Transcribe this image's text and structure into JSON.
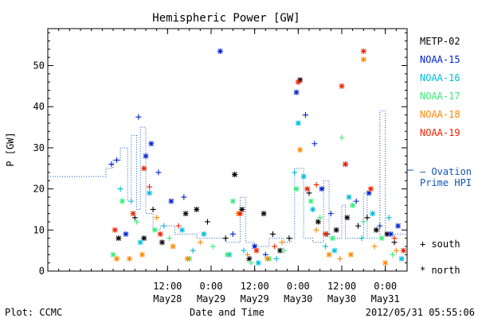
{
  "chart_data": {
    "type": "scatter",
    "title": "Hemispheric Power [GW]",
    "ylabel": "P [GW]",
    "xlabel": "Date and Time",
    "xlim": [
      "2012-05-27T03:00",
      "2012-05-31T06:00"
    ],
    "ylim": [
      0,
      59
    ],
    "yticks": [
      0,
      10,
      20,
      30,
      40,
      50
    ],
    "xticks": [
      {
        "t": "2012-05-28T12:00",
        "time": "12:00",
        "date": "May28"
      },
      {
        "t": "2012-05-29T00:00",
        "time": "0:00",
        "date": "May29"
      },
      {
        "t": "2012-05-29T12:00",
        "time": "12:00",
        "date": "May29"
      },
      {
        "t": "2012-05-30T00:00",
        "time": "0:00",
        "date": "May30"
      },
      {
        "t": "2012-05-30T12:00",
        "time": "12:00",
        "date": "May30"
      },
      {
        "t": "2012-05-31T00:00",
        "time": "0:00",
        "date": "May31"
      }
    ],
    "series": [
      {
        "name": "METP-02",
        "color": "#000000",
        "points": [
          {
            "t": "2012-05-27T22:30",
            "v": 8,
            "m": "*"
          },
          {
            "t": "2012-05-28T03:00",
            "v": 13,
            "m": "+"
          },
          {
            "t": "2012-05-28T05:30",
            "v": 8,
            "m": "*"
          },
          {
            "t": "2012-05-28T08:00",
            "v": 15,
            "m": "+"
          },
          {
            "t": "2012-05-28T10:30",
            "v": 7,
            "m": "*"
          },
          {
            "t": "2012-05-28T17:00",
            "v": 14,
            "m": "*"
          },
          {
            "t": "2012-05-28T20:00",
            "v": 15,
            "m": "*"
          },
          {
            "t": "2012-05-28T23:00",
            "v": 12,
            "m": "+"
          },
          {
            "t": "2012-05-29T04:00",
            "v": 8,
            "m": "+"
          },
          {
            "t": "2012-05-29T06:30",
            "v": 23.5,
            "m": "*"
          },
          {
            "t": "2012-05-29T08:30",
            "v": 15,
            "m": "*"
          },
          {
            "t": "2012-05-29T10:30",
            "v": 3,
            "m": "*"
          },
          {
            "t": "2012-05-29T14:30",
            "v": 14,
            "m": "*"
          },
          {
            "t": "2012-05-29T17:00",
            "v": 9,
            "m": "+"
          },
          {
            "t": "2012-05-29T19:00",
            "v": 5,
            "m": "*"
          },
          {
            "t": "2012-05-29T21:30",
            "v": 8,
            "m": "+"
          },
          {
            "t": "2012-05-30T00:30",
            "v": 46.5,
            "m": "*"
          },
          {
            "t": "2012-05-30T03:00",
            "v": 19,
            "m": "+"
          },
          {
            "t": "2012-05-30T05:30",
            "v": 12,
            "m": "*"
          },
          {
            "t": "2012-05-30T08:00",
            "v": 9,
            "m": "+"
          },
          {
            "t": "2012-05-30T10:30",
            "v": 10,
            "m": "*"
          },
          {
            "t": "2012-05-30T13:30",
            "v": 13,
            "m": "*"
          },
          {
            "t": "2012-05-30T16:30",
            "v": 11,
            "m": "+"
          },
          {
            "t": "2012-05-30T19:00",
            "v": 13,
            "m": "+"
          },
          {
            "t": "2012-05-30T21:30",
            "v": 10,
            "m": "*"
          },
          {
            "t": "2012-05-31T00:30",
            "v": 9,
            "m": "*"
          },
          {
            "t": "2012-05-31T02:30",
            "v": 7,
            "m": "+"
          }
        ]
      },
      {
        "name": "NOAA-15",
        "color": "#0022cc",
        "points": [
          {
            "t": "2012-05-27T20:30",
            "v": 26,
            "m": "+"
          },
          {
            "t": "2012-05-27T22:00",
            "v": 27,
            "m": "+"
          },
          {
            "t": "2012-05-28T00:30",
            "v": 9,
            "m": "*"
          },
          {
            "t": "2012-05-28T04:00",
            "v": 37.5,
            "m": "+"
          },
          {
            "t": "2012-05-28T06:00",
            "v": 28,
            "m": "*"
          },
          {
            "t": "2012-05-28T07:30",
            "v": 31,
            "m": "*"
          },
          {
            "t": "2012-05-28T09:30",
            "v": 24,
            "m": "+"
          },
          {
            "t": "2012-05-28T13:00",
            "v": 17,
            "m": "*"
          },
          {
            "t": "2012-05-28T16:30",
            "v": 18,
            "m": "+"
          },
          {
            "t": "2012-05-29T02:30",
            "v": 53.5,
            "m": "*"
          },
          {
            "t": "2012-05-29T06:00",
            "v": 9,
            "m": "+"
          },
          {
            "t": "2012-05-29T12:00",
            "v": 6,
            "m": "*"
          },
          {
            "t": "2012-05-29T15:00",
            "v": 4,
            "m": "+"
          },
          {
            "t": "2012-05-29T23:30",
            "v": 43.5,
            "m": "*"
          },
          {
            "t": "2012-05-30T02:00",
            "v": 38,
            "m": "+"
          },
          {
            "t": "2012-05-30T04:30",
            "v": 31,
            "m": "+"
          },
          {
            "t": "2012-05-30T06:30",
            "v": 20,
            "m": "*"
          },
          {
            "t": "2012-05-30T09:00",
            "v": 14,
            "m": "+"
          },
          {
            "t": "2012-05-30T13:00",
            "v": 26,
            "m": "*"
          },
          {
            "t": "2012-05-30T16:00",
            "v": 17,
            "m": "+"
          },
          {
            "t": "2012-05-30T19:30",
            "v": 19,
            "m": "*"
          },
          {
            "t": "2012-05-30T22:30",
            "v": 11,
            "m": "+"
          },
          {
            "t": "2012-05-31T01:30",
            "v": 9,
            "m": "*"
          },
          {
            "t": "2012-05-31T03:30",
            "v": 11,
            "m": "*"
          }
        ]
      },
      {
        "name": "NOAA-16",
        "color": "#00bbdd",
        "points": [
          {
            "t": "2012-05-27T23:00",
            "v": 20,
            "m": "+"
          },
          {
            "t": "2012-05-28T02:00",
            "v": 17,
            "m": "+"
          },
          {
            "t": "2012-05-28T04:30",
            "v": 7,
            "m": "*"
          },
          {
            "t": "2012-05-28T07:00",
            "v": 19,
            "m": "*"
          },
          {
            "t": "2012-05-28T11:00",
            "v": 11,
            "m": "+"
          },
          {
            "t": "2012-05-28T16:00",
            "v": 10,
            "m": "*"
          },
          {
            "t": "2012-05-28T19:00",
            "v": 5,
            "m": "+"
          },
          {
            "t": "2012-05-28T22:00",
            "v": 9,
            "m": "*"
          },
          {
            "t": "2012-05-29T05:00",
            "v": 4,
            "m": "*"
          },
          {
            "t": "2012-05-29T09:00",
            "v": 5,
            "m": "+"
          },
          {
            "t": "2012-05-29T13:00",
            "v": 2,
            "m": "*"
          },
          {
            "t": "2012-05-29T18:00",
            "v": 3,
            "m": "+"
          },
          {
            "t": "2012-05-29T23:00",
            "v": 24,
            "m": "+"
          },
          {
            "t": "2012-05-30T00:00",
            "v": 36,
            "m": "*"
          },
          {
            "t": "2012-05-30T01:30",
            "v": 23,
            "m": "*"
          },
          {
            "t": "2012-05-30T04:00",
            "v": 15,
            "m": "*"
          },
          {
            "t": "2012-05-30T07:30",
            "v": 6,
            "m": "+"
          },
          {
            "t": "2012-05-30T10:00",
            "v": 5,
            "m": "*"
          },
          {
            "t": "2012-05-30T14:00",
            "v": 18,
            "m": "*"
          },
          {
            "t": "2012-05-30T17:30",
            "v": 8,
            "m": "+"
          },
          {
            "t": "2012-05-30T20:30",
            "v": 14,
            "m": "*"
          },
          {
            "t": "2012-05-31T01:00",
            "v": 13,
            "m": "+"
          },
          {
            "t": "2012-05-31T04:30",
            "v": 3,
            "m": "*"
          }
        ]
      },
      {
        "name": "NOAA-17",
        "color": "#33ee77",
        "points": [
          {
            "t": "2012-05-27T21:00",
            "v": 4,
            "m": "*"
          },
          {
            "t": "2012-05-27T23:30",
            "v": 17,
            "m": "*"
          },
          {
            "t": "2012-05-28T03:30",
            "v": 12,
            "m": "+"
          },
          {
            "t": "2012-05-28T08:30",
            "v": 10,
            "m": "*"
          },
          {
            "t": "2012-05-28T12:30",
            "v": 8,
            "m": "+"
          },
          {
            "t": "2012-05-28T18:00",
            "v": 3,
            "m": "*"
          },
          {
            "t": "2012-05-29T00:30",
            "v": 6,
            "m": "+"
          },
          {
            "t": "2012-05-29T04:30",
            "v": 4,
            "m": "*"
          },
          {
            "t": "2012-05-29T06:00",
            "v": 17,
            "m": "*"
          },
          {
            "t": "2012-05-29T11:00",
            "v": 2,
            "m": "+"
          },
          {
            "t": "2012-05-29T16:00",
            "v": 3,
            "m": "*"
          },
          {
            "t": "2012-05-29T20:00",
            "v": 5,
            "m": "+"
          },
          {
            "t": "2012-05-29T23:30",
            "v": 20,
            "m": "*"
          },
          {
            "t": "2012-05-30T03:30",
            "v": 17,
            "m": "*"
          },
          {
            "t": "2012-05-30T06:00",
            "v": 13,
            "m": "+"
          },
          {
            "t": "2012-05-30T09:30",
            "v": 8,
            "m": "*"
          },
          {
            "t": "2012-05-30T12:00",
            "v": 32.5,
            "m": "+"
          },
          {
            "t": "2012-05-30T15:00",
            "v": 16,
            "m": "*"
          },
          {
            "t": "2012-05-30T18:00",
            "v": 12,
            "m": "+"
          },
          {
            "t": "2012-05-30T23:00",
            "v": 8,
            "m": "*"
          },
          {
            "t": "2012-05-31T02:00",
            "v": 4,
            "m": "+"
          }
        ]
      },
      {
        "name": "NOAA-18",
        "color": "#ff8800",
        "points": [
          {
            "t": "2012-05-27T22:00",
            "v": 3,
            "m": "*"
          },
          {
            "t": "2012-05-28T01:30",
            "v": 3,
            "m": "*"
          },
          {
            "t": "2012-05-28T05:00",
            "v": 4,
            "m": "*"
          },
          {
            "t": "2012-05-28T09:00",
            "v": 13,
            "m": "+"
          },
          {
            "t": "2012-05-28T13:30",
            "v": 6,
            "m": "*"
          },
          {
            "t": "2012-05-28T17:30",
            "v": 3,
            "m": "*"
          },
          {
            "t": "2012-05-28T21:00",
            "v": 7,
            "m": "+"
          },
          {
            "t": "2012-05-29T07:30",
            "v": 14,
            "m": "*"
          },
          {
            "t": "2012-05-29T10:00",
            "v": 4,
            "m": "+"
          },
          {
            "t": "2012-05-29T15:30",
            "v": 3,
            "m": "*"
          },
          {
            "t": "2012-05-29T19:30",
            "v": 7,
            "m": "+"
          },
          {
            "t": "2012-05-30T00:30",
            "v": 29.5,
            "m": "*"
          },
          {
            "t": "2012-05-30T05:00",
            "v": 10,
            "m": "+"
          },
          {
            "t": "2012-05-30T08:30",
            "v": 4,
            "m": "*"
          },
          {
            "t": "2012-05-30T11:30",
            "v": 3,
            "m": "+"
          },
          {
            "t": "2012-05-30T14:30",
            "v": 4,
            "m": "*"
          },
          {
            "t": "2012-05-30T18:00",
            "v": 51.5,
            "m": "*"
          },
          {
            "t": "2012-05-30T21:00",
            "v": 6,
            "m": "+"
          },
          {
            "t": "2012-05-31T00:00",
            "v": 2,
            "m": "*"
          },
          {
            "t": "2012-05-31T03:00",
            "v": 5,
            "m": "+"
          }
        ]
      },
      {
        "name": "NOAA-19",
        "color": "#ee2200",
        "points": [
          {
            "t": "2012-05-27T21:30",
            "v": 10,
            "m": "*"
          },
          {
            "t": "2012-05-28T02:30",
            "v": 14,
            "m": "*"
          },
          {
            "t": "2012-05-28T05:30",
            "v": 25,
            "m": "*"
          },
          {
            "t": "2012-05-28T07:00",
            "v": 20.5,
            "m": "+"
          },
          {
            "t": "2012-05-28T10:00",
            "v": 9,
            "m": "*"
          },
          {
            "t": "2012-05-28T15:00",
            "v": 11,
            "m": "+"
          },
          {
            "t": "2012-05-29T08:00",
            "v": 14,
            "m": "*"
          },
          {
            "t": "2012-05-29T12:30",
            "v": 5,
            "m": "*"
          },
          {
            "t": "2012-05-29T17:30",
            "v": 6,
            "m": "+"
          },
          {
            "t": "2012-05-30T00:00",
            "v": 46,
            "m": "*"
          },
          {
            "t": "2012-05-30T02:30",
            "v": 20,
            "m": "*"
          },
          {
            "t": "2012-05-30T05:00",
            "v": 21,
            "m": "+"
          },
          {
            "t": "2012-05-30T07:30",
            "v": 9,
            "m": "*"
          },
          {
            "t": "2012-05-30T12:00",
            "v": 45,
            "m": "*"
          },
          {
            "t": "2012-05-30T13:00",
            "v": 26,
            "m": "*"
          },
          {
            "t": "2012-05-30T18:00",
            "v": 53.5,
            "m": "*"
          },
          {
            "t": "2012-05-30T20:00",
            "v": 20,
            "m": "*"
          },
          {
            "t": "2012-05-31T02:30",
            "v": 8,
            "m": "+"
          },
          {
            "t": "2012-05-31T05:00",
            "v": 5,
            "m": "*"
          }
        ]
      }
    ],
    "ovation": {
      "name": "Ovation Prime HPI",
      "color": "#1155bb",
      "style": "dotted step",
      "points": [
        {
          "t": "2012-05-27T03:00",
          "v": 23
        },
        {
          "t": "2012-05-27T19:00",
          "v": 25
        },
        {
          "t": "2012-05-27T21:00",
          "v": 27
        },
        {
          "t": "2012-05-27T23:00",
          "v": 30
        },
        {
          "t": "2012-05-28T01:00",
          "v": 17
        },
        {
          "t": "2012-05-28T02:00",
          "v": 33
        },
        {
          "t": "2012-05-28T03:30",
          "v": 15
        },
        {
          "t": "2012-05-28T04:30",
          "v": 35
        },
        {
          "t": "2012-05-28T06:00",
          "v": 14
        },
        {
          "t": "2012-05-28T08:00",
          "v": 10
        },
        {
          "t": "2012-05-28T10:00",
          "v": 11
        },
        {
          "t": "2012-05-28T14:00",
          "v": 9
        },
        {
          "t": "2012-05-28T20:00",
          "v": 8
        },
        {
          "t": "2012-05-29T04:00",
          "v": 7
        },
        {
          "t": "2012-05-29T08:00",
          "v": 18
        },
        {
          "t": "2012-05-29T09:30",
          "v": 7
        },
        {
          "t": "2012-05-29T12:00",
          "v": 6
        },
        {
          "t": "2012-05-29T16:00",
          "v": 8
        },
        {
          "t": "2012-05-29T20:00",
          "v": 7
        },
        {
          "t": "2012-05-29T22:00",
          "v": 8
        },
        {
          "t": "2012-05-29T23:00",
          "v": 25
        },
        {
          "t": "2012-05-30T01:30",
          "v": 8
        },
        {
          "t": "2012-05-30T04:00",
          "v": 7
        },
        {
          "t": "2012-05-30T07:00",
          "v": 22
        },
        {
          "t": "2012-05-30T08:30",
          "v": 8
        },
        {
          "t": "2012-05-30T12:00",
          "v": 16
        },
        {
          "t": "2012-05-30T13:00",
          "v": 8
        },
        {
          "t": "2012-05-30T18:00",
          "v": 19
        },
        {
          "t": "2012-05-30T19:00",
          "v": 8
        },
        {
          "t": "2012-05-30T22:30",
          "v": 39
        },
        {
          "t": "2012-05-31T00:00",
          "v": 9
        },
        {
          "t": "2012-05-31T02:00",
          "v": 9
        }
      ]
    },
    "legend": {
      "entries": [
        "METP-02",
        "NOAA-15",
        "NOAA-16",
        "NOAA-17",
        "NOAA-18",
        "NOAA-19"
      ],
      "ovation_label": [
        "— Ovation",
        "Prime HPI"
      ],
      "south": "+ south",
      "north": "* north",
      "placement": "right"
    }
  },
  "footer": {
    "credit": "Plot: CCMC",
    "timestamp": "2012/05/31 05:55:06"
  }
}
